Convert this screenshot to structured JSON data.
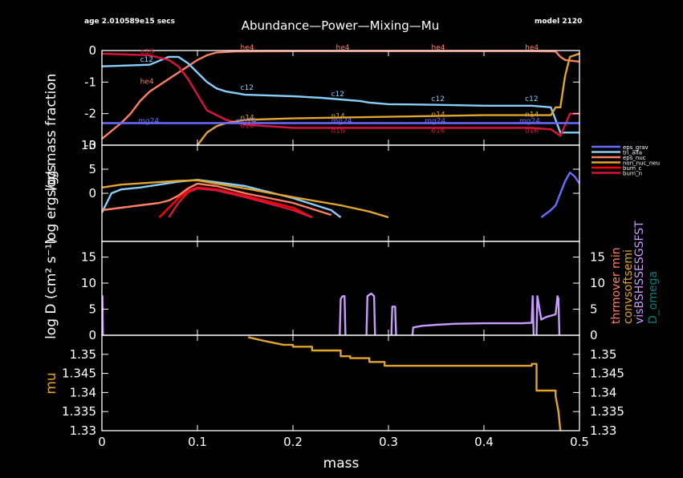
{
  "header": {
    "age": "age 2.010589e15 secs",
    "title": "Abundance—Power—Mixing—Mu",
    "model": "model 2120"
  },
  "chart_data": [
    {
      "type": "line",
      "panel": "abundance",
      "ylabel": "log mass fraction",
      "xlim": [
        0,
        0.5
      ],
      "ylim": [
        -3,
        0
      ],
      "yticks": [
        "0",
        "-1",
        "-2",
        "-3"
      ],
      "line_labels_shown": [
        "he4",
        "c12",
        "o16",
        "n14",
        "mg24"
      ],
      "series": [
        {
          "name": "he4",
          "color": "#ff7f64",
          "x": [
            0,
            0.02,
            0.03,
            0.04,
            0.05,
            0.06,
            0.07,
            0.08,
            0.09,
            0.1,
            0.11,
            0.12,
            0.14,
            0.2,
            0.3,
            0.4,
            0.45,
            0.475,
            0.48,
            0.485,
            0.5
          ],
          "y": [
            -2.8,
            -2.3,
            -2.0,
            -1.6,
            -1.3,
            -1.1,
            -0.9,
            -0.7,
            -0.5,
            -0.3,
            -0.15,
            -0.06,
            -0.03,
            -0.02,
            -0.02,
            -0.02,
            -0.02,
            -0.03,
            -0.2,
            -0.3,
            -0.35
          ]
        },
        {
          "name": "c12",
          "color": "#87cefa",
          "x": [
            0,
            0.02,
            0.05,
            0.07,
            0.08,
            0.09,
            0.1,
            0.11,
            0.12,
            0.13,
            0.15,
            0.2,
            0.23,
            0.25,
            0.27,
            0.28,
            0.3,
            0.35,
            0.4,
            0.45,
            0.47,
            0.475,
            0.48,
            0.49,
            0.5
          ],
          "y": [
            -0.5,
            -0.48,
            -0.45,
            -0.2,
            -0.2,
            -0.4,
            -0.7,
            -1.0,
            -1.2,
            -1.3,
            -1.4,
            -1.45,
            -1.5,
            -1.55,
            -1.6,
            -1.65,
            -1.7,
            -1.72,
            -1.75,
            -1.75,
            -1.8,
            -2.2,
            -2.6,
            -2.6,
            -2.6
          ]
        },
        {
          "name": "o16",
          "color": "#dc143c",
          "x": [
            0,
            0.02,
            0.05,
            0.07,
            0.08,
            0.09,
            0.1,
            0.11,
            0.13,
            0.15,
            0.2,
            0.3,
            0.4,
            0.45,
            0.47,
            0.48,
            0.49,
            0.5
          ],
          "y": [
            -0.1,
            -0.12,
            -0.15,
            -0.3,
            -0.5,
            -0.9,
            -1.4,
            -1.9,
            -2.2,
            -2.35,
            -2.45,
            -2.45,
            -2.45,
            -2.45,
            -2.5,
            -2.7,
            -2.0,
            -2.0
          ]
        },
        {
          "name": "n14",
          "color": "#e1a52d",
          "x": [
            0.1,
            0.11,
            0.12,
            0.13,
            0.14,
            0.15,
            0.2,
            0.3,
            0.4,
            0.45,
            0.47,
            0.475,
            0.48,
            0.485,
            0.49,
            0.5
          ],
          "y": [
            -3.0,
            -2.6,
            -2.4,
            -2.3,
            -2.25,
            -2.2,
            -2.15,
            -2.1,
            -2.05,
            -2.05,
            -2.05,
            -1.8,
            -1.8,
            -0.8,
            -0.2,
            -0.1
          ]
        },
        {
          "name": "mg24",
          "color": "#6b6bff",
          "x": [
            0,
            0.5
          ],
          "y": [
            -2.3,
            -2.3
          ]
        }
      ]
    },
    {
      "type": "line",
      "panel": "power",
      "ylabel": "log ergs/g/s",
      "xlim": [
        0,
        0.5
      ],
      "ylim": [
        -10,
        10
      ],
      "yticks": [
        "10",
        "5",
        "0"
      ],
      "legend": {
        "placement": "right",
        "entries": [
          "eps_grav",
          "tri_alfa",
          "eps_nuc",
          "non_nuc_neu",
          "burn_c",
          "burn_n"
        ]
      },
      "series": [
        {
          "name": "eps_grav",
          "color": "#6b6bff",
          "x": [
            0.46,
            0.47,
            0.475,
            0.48,
            0.485,
            0.49,
            0.495,
            0.5
          ],
          "y": [
            -5.0,
            -3.5,
            -2.5,
            0.0,
            2.5,
            4.3,
            3.5,
            2.0
          ]
        },
        {
          "name": "tri_alfa",
          "color": "#87cefa",
          "x": [
            0,
            0.01,
            0.02,
            0.04,
            0.06,
            0.08,
            0.1,
            0.12,
            0.15,
            0.2,
            0.24,
            0.25
          ],
          "y": [
            -4.0,
            0.0,
            0.8,
            1.2,
            1.8,
            2.4,
            2.8,
            2.3,
            1.5,
            -1.0,
            -3.5,
            -5.0
          ]
        },
        {
          "name": "eps_nuc",
          "color": "#ff7f64",
          "x": [
            0,
            0.02,
            0.04,
            0.06,
            0.07,
            0.08,
            0.09,
            0.1,
            0.12,
            0.15,
            0.2,
            0.24
          ],
          "y": [
            -3.5,
            -3.0,
            -2.5,
            -2.0,
            -1.5,
            -0.5,
            1.0,
            2.0,
            1.5,
            0.0,
            -2.0,
            -4.5
          ]
        },
        {
          "name": "non_nuc_neu",
          "color": "#e1a52d",
          "x": [
            0,
            0.02,
            0.05,
            0.08,
            0.1,
            0.12,
            0.15,
            0.2,
            0.25,
            0.28,
            0.3
          ],
          "y": [
            1.2,
            1.8,
            2.2,
            2.6,
            2.7,
            2.0,
            1.0,
            -0.8,
            -2.5,
            -3.8,
            -5.0
          ]
        },
        {
          "name": "burn_c",
          "color": "#ff0000",
          "x": [
            0.06,
            0.07,
            0.08,
            0.09,
            0.1,
            0.12,
            0.15,
            0.2,
            0.22
          ],
          "y": [
            -5.0,
            -3.0,
            -1.0,
            0.5,
            1.2,
            0.8,
            -0.5,
            -3.0,
            -5.0
          ]
        },
        {
          "name": "burn_n",
          "color": "#dc143c",
          "x": [
            0.07,
            0.08,
            0.09,
            0.1,
            0.12,
            0.15,
            0.2,
            0.22
          ],
          "y": [
            -5.0,
            -2.0,
            0.2,
            1.0,
            0.6,
            -0.8,
            -3.5,
            -5.0
          ]
        }
      ]
    },
    {
      "type": "line",
      "panel": "mixing",
      "ylabel": "log D (cm² s⁻¹)",
      "xlim": [
        0,
        0.5
      ],
      "ylim": [
        0,
        18
      ],
      "yticks": [
        "15",
        "10",
        "5",
        "0"
      ],
      "right_labels": [
        {
          "text": "thrmover min",
          "color": "#ff7f64"
        },
        {
          "text": "convsoftsemi",
          "color": "#e1a52d"
        },
        {
          "text": "visBSHSSESGSFST",
          "color": "#c89bff"
        },
        {
          "text": "D_omega",
          "color": "#008080"
        }
      ],
      "series": [
        {
          "name": "mixing",
          "color": "#c89bff",
          "segments": [
            {
              "x": [
                0,
                0.0005,
                0.001
              ],
              "y": [
                0,
                7.5,
                0
              ]
            },
            {
              "x": [
                0.249,
                0.25,
                0.252,
                0.254,
                0.255
              ],
              "y": [
                0,
                7.0,
                7.5,
                7.5,
                0
              ]
            },
            {
              "x": [
                0.277,
                0.278,
                0.282,
                0.285,
                0.286
              ],
              "y": [
                0,
                7.5,
                8.0,
                7.5,
                0
              ]
            },
            {
              "x": [
                0.303,
                0.304,
                0.307,
                0.308
              ],
              "y": [
                0,
                5.5,
                5.5,
                0
              ]
            },
            {
              "x": [
                0.325,
                0.326,
                0.335,
                0.35,
                0.37,
                0.4,
                0.44,
                0.45,
                0.451,
                0.452
              ],
              "y": [
                0,
                1.5,
                1.8,
                2.0,
                2.2,
                2.3,
                2.3,
                2.4,
                7.5,
                0
              ]
            },
            {
              "x": [
                0.455,
                0.456,
                0.46,
                0.465,
                0.475,
                0.477,
                0.478,
                0.479
              ],
              "y": [
                0,
                7.5,
                3.0,
                3.5,
                4.0,
                7.5,
                7.0,
                0
              ]
            }
          ]
        }
      ]
    },
    {
      "type": "line",
      "panel": "mu",
      "ylabel": "mu",
      "xlabel": "mass",
      "xlim": [
        0,
        0.5
      ],
      "ylim": [
        1.33,
        1.355
      ],
      "yticks": [
        "1.35",
        "1.345",
        "1.34",
        "1.335",
        "1.33"
      ],
      "xticks": [
        "0",
        "0.1",
        "0.2",
        "0.3",
        "0.4",
        "0.5"
      ],
      "series": [
        {
          "name": "mu",
          "color": "#e1a52d",
          "x": [
            0.153,
            0.17,
            0.19,
            0.2,
            0.2,
            0.22,
            0.22,
            0.25,
            0.25,
            0.26,
            0.26,
            0.28,
            0.28,
            0.296,
            0.296,
            0.45,
            0.45,
            0.455,
            0.455,
            0.475,
            0.475,
            0.478,
            0.48
          ],
          "y": [
            1.3545,
            1.3535,
            1.3525,
            1.3525,
            1.352,
            1.352,
            1.351,
            1.351,
            1.3495,
            1.3495,
            1.349,
            1.349,
            1.348,
            1.348,
            1.347,
            1.347,
            1.3475,
            1.3475,
            1.3405,
            1.3405,
            1.339,
            1.335,
            1.33
          ]
        }
      ]
    }
  ]
}
